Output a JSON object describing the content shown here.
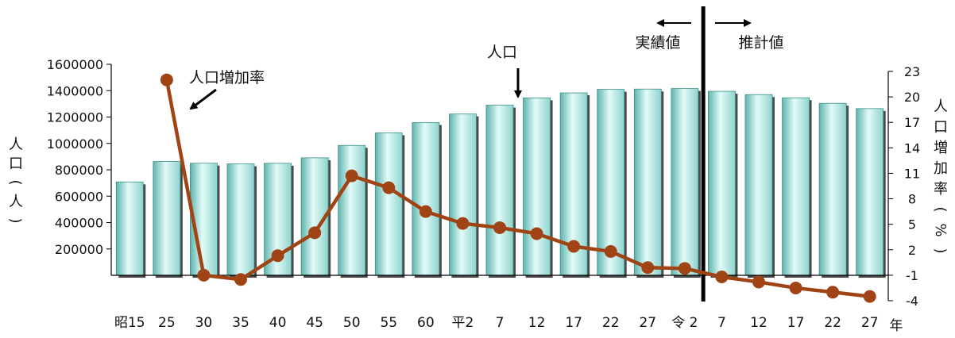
{
  "chart_data": {
    "type": "bar+line",
    "categories": [
      "昭15",
      "25",
      "30",
      "35",
      "40",
      "45",
      "50",
      "55",
      "60",
      "平2",
      "7",
      "12",
      "17",
      "22",
      "27",
      "令 2",
      "7",
      "12",
      "17",
      "22",
      "27"
    ],
    "x_suffix": "年",
    "bar_series": {
      "name": "人口",
      "values": [
        708000,
        863000,
        850000,
        845000,
        849000,
        891000,
        985000,
        1080000,
        1158000,
        1223000,
        1290000,
        1345000,
        1383000,
        1410000,
        1412000,
        1416000,
        1395000,
        1370000,
        1346000,
        1304000,
        1264000
      ],
      "axis": "left"
    },
    "line_series": {
      "name": "人口増加率",
      "values": [
        22.0,
        -1.0,
        -1.5,
        1.3,
        4.0,
        10.7,
        9.3,
        6.5,
        5.1,
        4.6,
        3.9,
        2.4,
        1.8,
        -0.1,
        -0.2,
        -1.2,
        -1.8,
        -2.5,
        -3.0,
        -3.5
      ],
      "category_start_index": 1,
      "axis": "right"
    },
    "left_axis": {
      "label": "人口(人)",
      "ylim": [
        0,
        1600000
      ],
      "ticks": [
        "1600000",
        "1400000",
        "1200000",
        "1000000",
        "800000",
        "600000",
        "400000",
        "200000"
      ]
    },
    "right_axis": {
      "label": "人口増加率(%)",
      "ylim": [
        -4,
        23
      ],
      "ticks": [
        "23",
        "20",
        "17",
        "14",
        "11",
        "8",
        "5",
        "2",
        "-1",
        "-4"
      ]
    },
    "annotations": {
      "population": "人口",
      "growth_rate": "人口増加率",
      "actual": "実績値",
      "estimate": "推計値"
    },
    "divider_after_category_index": 15,
    "colors": {
      "bar_light": "#e2fbf8",
      "bar_mid": "#a4e6e1",
      "bar_dark": "#5fb4ae",
      "bar_shadow": "#4a4a4a",
      "line": "#a04416",
      "divider": "#000000"
    }
  }
}
